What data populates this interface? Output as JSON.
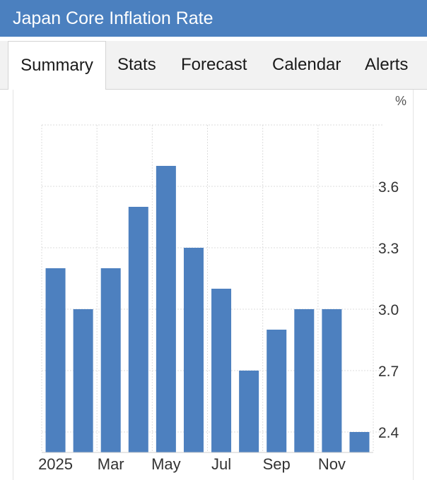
{
  "header": {
    "title": "Japan Core Inflation Rate"
  },
  "tabs": [
    {
      "label": "Summary",
      "active": true
    },
    {
      "label": "Stats",
      "active": false
    },
    {
      "label": "Forecast",
      "active": false
    },
    {
      "label": "Calendar",
      "active": false
    },
    {
      "label": "Alerts",
      "active": false
    }
  ],
  "chart_data": {
    "type": "bar",
    "unit": "%",
    "categories": [
      "Jan 2025",
      "Feb 2025",
      "Mar 2025",
      "Apr 2025",
      "May 2025",
      "Jun 2025",
      "Jul 2025",
      "Aug 2025",
      "Sep 2025",
      "Oct 2025",
      "Nov 2025",
      "Dec 2025"
    ],
    "values": [
      3.2,
      3.0,
      3.2,
      3.5,
      3.7,
      3.3,
      3.1,
      2.7,
      2.9,
      3.0,
      3.0,
      2.4
    ],
    "x_tick_labels": [
      {
        "category": "Jan 2025",
        "label": "2025"
      },
      {
        "category": "Mar 2025",
        "label": "Mar"
      },
      {
        "category": "May 2025",
        "label": "May"
      },
      {
        "category": "Jul 2025",
        "label": "Jul"
      },
      {
        "category": "Sep 2025",
        "label": "Sep"
      },
      {
        "category": "Nov 2025",
        "label": "Nov"
      }
    ],
    "y_ticks": [
      "2.4",
      "2.7",
      "3.0",
      "3.3",
      "3.6"
    ],
    "ylim": [
      2.3,
      3.9
    ],
    "bar_color": "#4d80bf",
    "grid": true,
    "y_axis_position": "right"
  }
}
